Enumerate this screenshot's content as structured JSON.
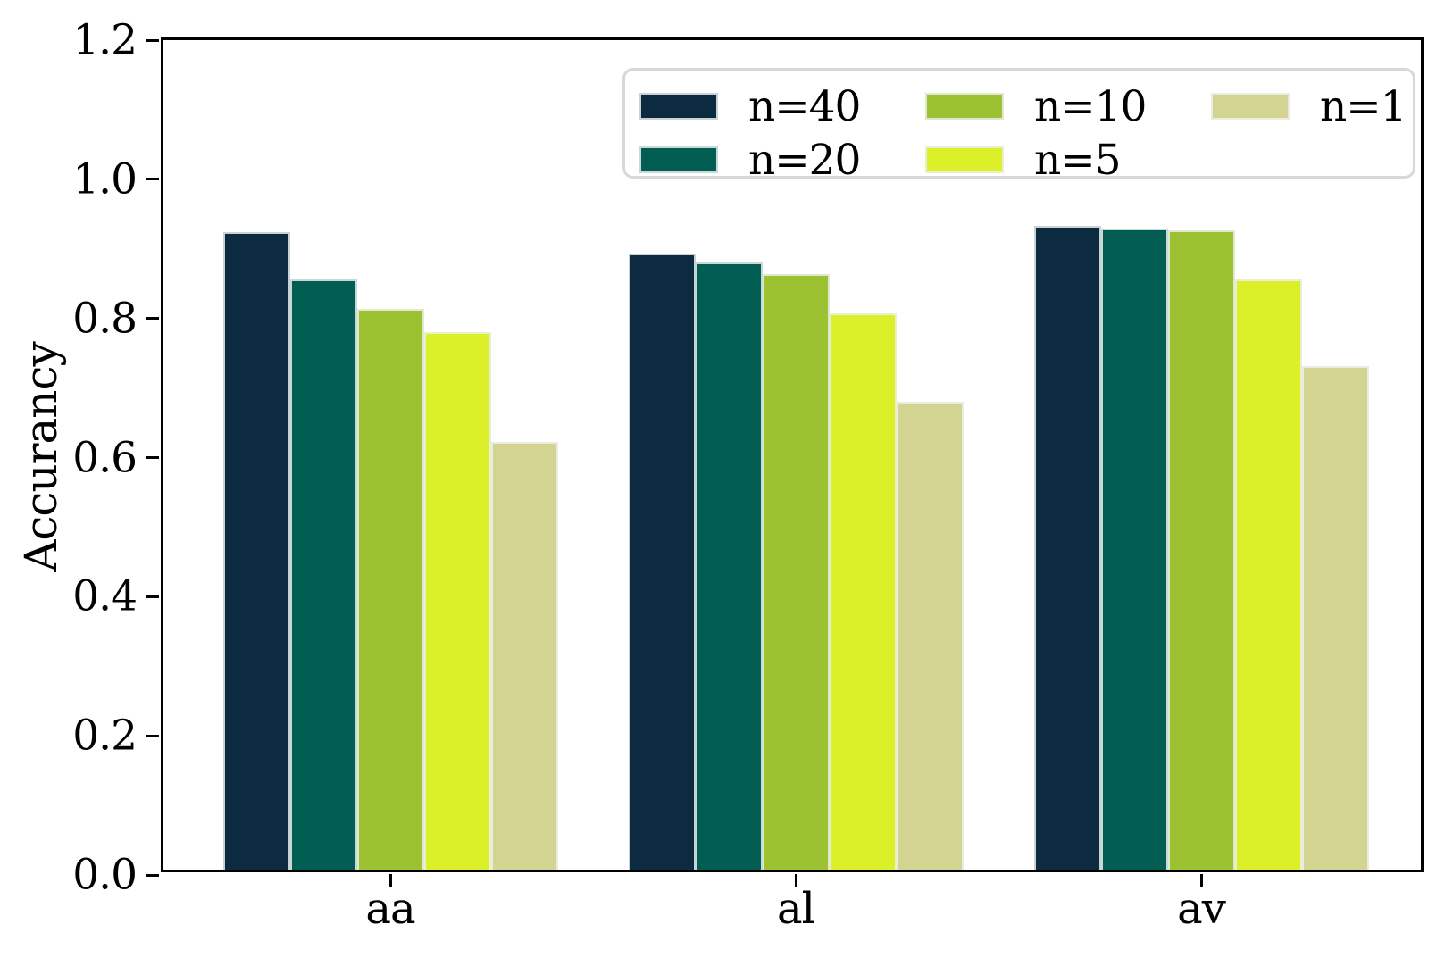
{
  "chart_data": {
    "type": "bar",
    "title": "",
    "xlabel": "",
    "ylabel": "Accurancy",
    "categories": [
      "aa",
      "al",
      "av"
    ],
    "series": [
      {
        "name": "n=40",
        "color": "#0c2b40",
        "values": [
          0.916,
          0.886,
          0.925
        ]
      },
      {
        "name": "n=20",
        "color": "#025e52",
        "values": [
          0.848,
          0.873,
          0.922
        ]
      },
      {
        "name": "n=10",
        "color": "#9cc232",
        "values": [
          0.806,
          0.856,
          0.919
        ]
      },
      {
        "name": "n=5",
        "color": "#dcf02a",
        "values": [
          0.772,
          0.799,
          0.849
        ]
      },
      {
        "name": "n=1",
        "color": "#d3d492",
        "values": [
          0.615,
          0.673,
          0.724
        ]
      }
    ],
    "ylim": [
      0.0,
      1.2
    ],
    "yticks": [
      0.0,
      0.2,
      0.4,
      0.6,
      0.8,
      1.0,
      1.2
    ],
    "ytick_labels": [
      "0.0",
      "0.2",
      "0.4",
      "0.6",
      "0.8",
      "1.0",
      "1.2"
    ],
    "grid": false,
    "legend_position": "upper right inside plot",
    "legend_columns": 3,
    "background_color": "#ffffff",
    "axis_color": "#000000",
    "legend_border_color": "#d8d8d8"
  }
}
